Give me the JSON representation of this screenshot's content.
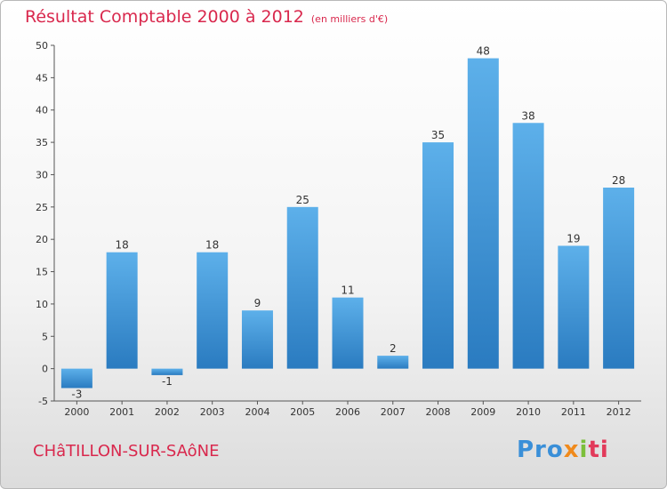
{
  "header": {
    "title": "Résultat Comptable 2000 à 2012",
    "subtitle": "(en milliers d'€)"
  },
  "footer": {
    "place": "CHâTILLON-SUR-SAôNE",
    "logo": [
      "Pro",
      "x",
      "i",
      "ti"
    ]
  },
  "colors": {
    "title": "#d9284d",
    "bar_top": "#5db0ea",
    "bar_bottom": "#2a7bc0",
    "axis": "#555555"
  },
  "chart_data": {
    "type": "bar",
    "title": "Résultat Comptable 2000 à 2012",
    "subtitle": "(en milliers d'€)",
    "categories": [
      "2000",
      "2001",
      "2002",
      "2003",
      "2004",
      "2005",
      "2006",
      "2007",
      "2008",
      "2009",
      "2010",
      "2011",
      "2012"
    ],
    "values": [
      -3,
      18,
      -1,
      18,
      9,
      25,
      11,
      2,
      35,
      48,
      38,
      19,
      28
    ],
    "xlabel": "",
    "ylabel": "",
    "ylim": [
      -5,
      50
    ],
    "yticks": [
      -5,
      0,
      5,
      10,
      15,
      20,
      25,
      30,
      35,
      40,
      45,
      50
    ],
    "grid": false,
    "legend": "none"
  }
}
